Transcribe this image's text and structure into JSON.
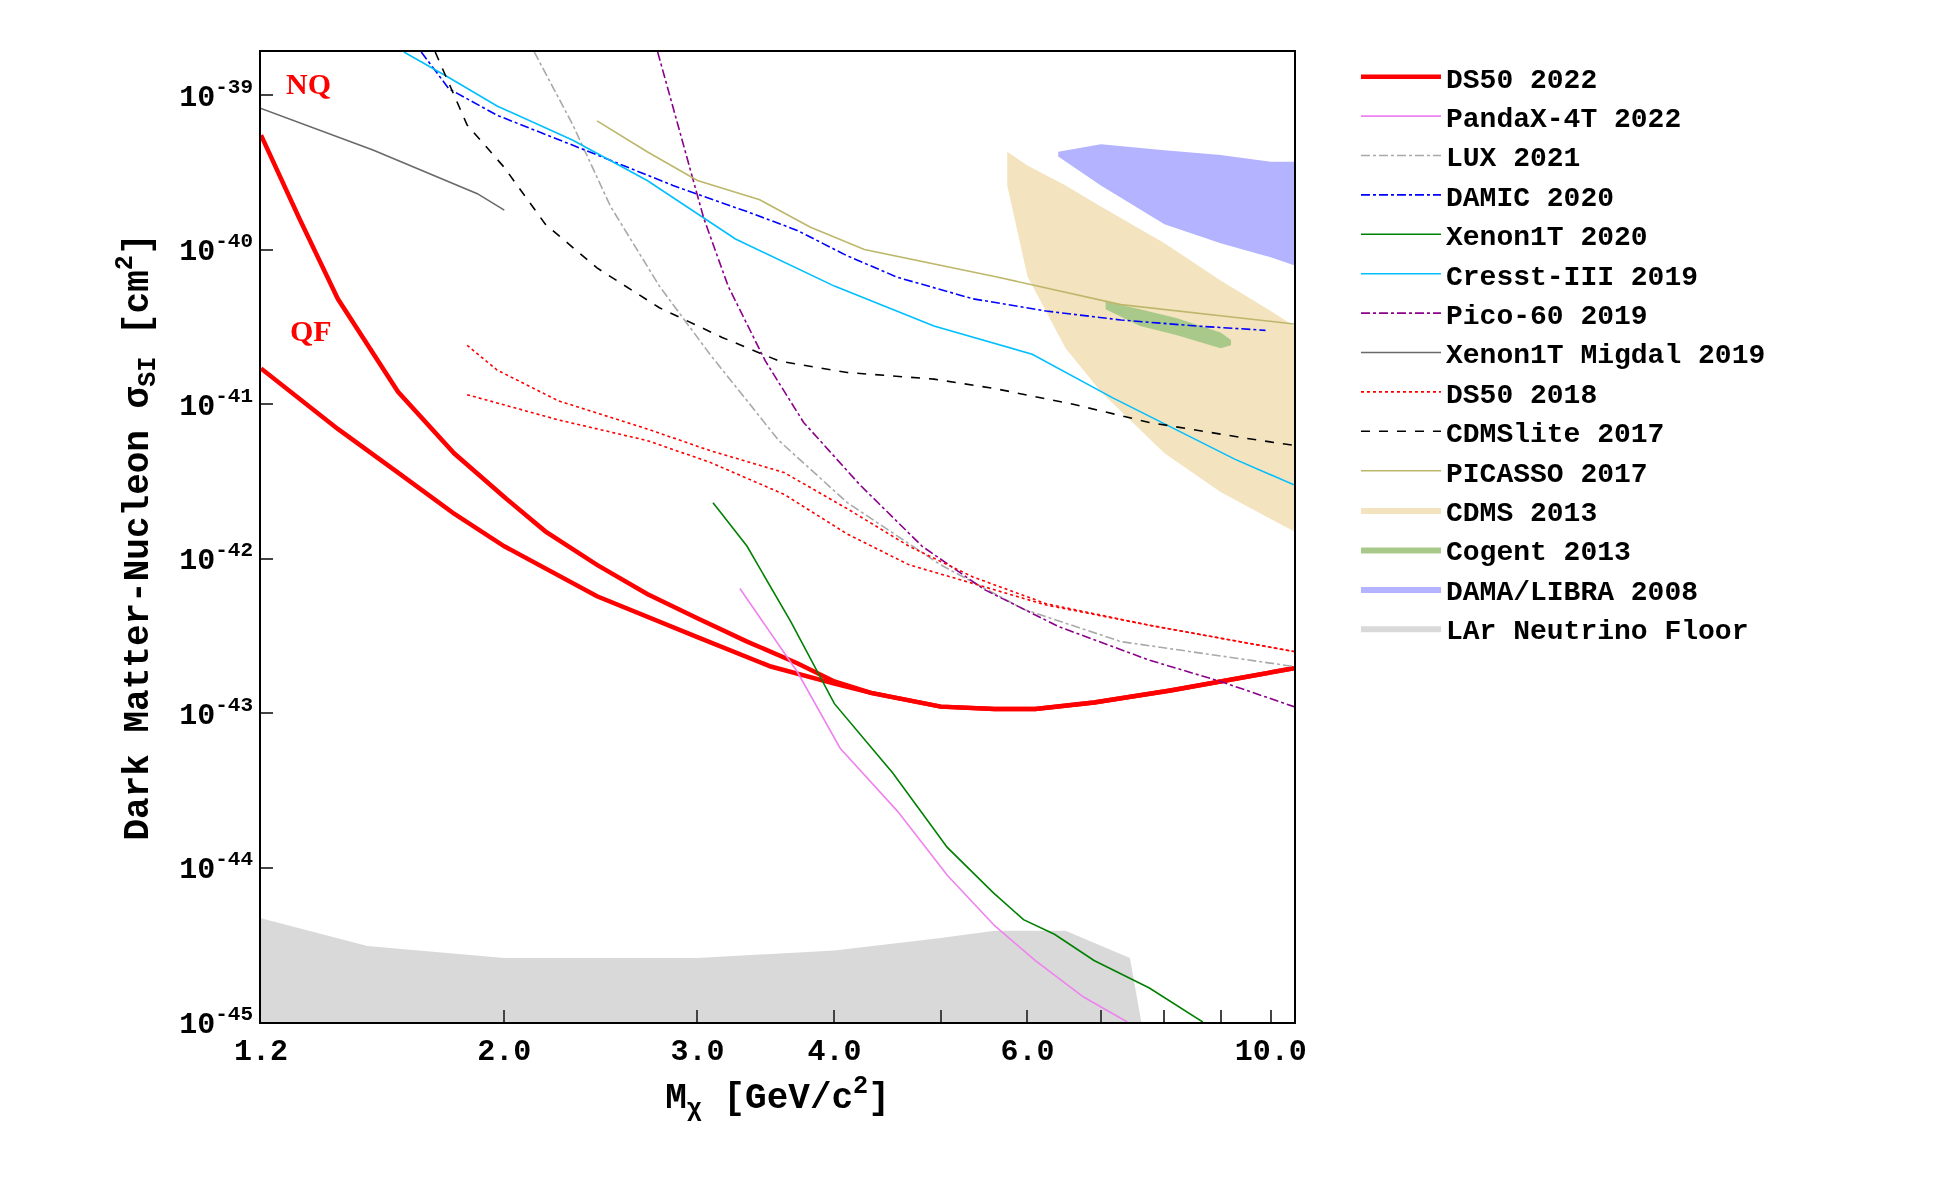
{
  "chart_data": {
    "type": "line",
    "xlabel": "M$_{χ}$ [GeV/c$^{2}$]",
    "ylabel": "Dark Matter-Nucleon σ$_{SI}$ [cm$^{2}$]",
    "log": "xy",
    "legend": "right",
    "xlim": [
      1.2,
      10.5
    ],
    "ylim": [
      1e-45,
      1.9e-39
    ],
    "xticks": [
      {
        "value": 1.2,
        "label": "1.2"
      },
      {
        "value": 2,
        "label": "2.0"
      },
      {
        "value": 3,
        "label": "3.0"
      },
      {
        "value": 4,
        "label": "4.0"
      },
      {
        "value": 5,
        "label": null
      },
      {
        "value": 6,
        "label": "6.0"
      },
      {
        "value": 7,
        "label": null
      },
      {
        "value": 8,
        "label": null
      },
      {
        "value": 9,
        "label": null
      },
      {
        "value": 10,
        "label": "10.0"
      }
    ],
    "yticks": [
      {
        "value": 1e-45,
        "label": "10$^{-45}$"
      },
      {
        "value": 1e-44,
        "label": "10$^{-44}$"
      },
      {
        "value": 1e-43,
        "label": "10$^{-43}$"
      },
      {
        "value": 1e-42,
        "label": "10$^{-42}$"
      },
      {
        "value": 1e-41,
        "label": "10$^{-41}$"
      },
      {
        "value": 1e-40,
        "label": "10$^{-40}$"
      },
      {
        "value": 1e-39,
        "label": "10$^{-39}$"
      }
    ],
    "annotations": [
      {
        "text": "NQ",
        "x": 1.25,
        "y": 3e-40
      },
      {
        "text": "QF",
        "x": 1.41,
        "y": 6.9e-42
      }
    ],
    "series": [
      {
        "name": "DS50 2022",
        "color": "#ff0000",
        "line_style": "solid",
        "x": [
          1.2,
          1.3,
          1.41,
          1.6,
          1.8,
          2.0,
          2.18,
          2.43,
          2.7,
          3.0,
          3.33,
          3.7,
          4.0,
          4.32,
          5.0,
          5.6,
          6.1,
          6.9,
          8.1,
          10.5
        ],
        "values": [
          5.5e-40,
          1.6e-40,
          4.8e-41,
          1.2e-41,
          4.8e-42,
          2.5e-42,
          1.5e-42,
          9.1e-43,
          5.9e-43,
          4.1e-43,
          2.9e-43,
          2.1e-43,
          1.6e-43,
          1.35e-43,
          1.1e-43,
          1.06e-43,
          1.06e-43,
          1.17e-43,
          1.4e-43,
          1.95e-43
        ]
      },
      {
        "color": "#ff0000",
        "line_style": "solid",
        "x": [
          1.2,
          1.41,
          1.6,
          1.8,
          2.0,
          2.43,
          3.0,
          3.5,
          4.0,
          4.32,
          5.0,
          5.6,
          6.1,
          6.9,
          8.1,
          10.5
        ],
        "values": [
          1.7e-41,
          6.9e-42,
          3.6e-42,
          1.95e-42,
          1.2e-42,
          5.7e-43,
          3.1e-43,
          2e-43,
          1.55e-43,
          1.35e-43,
          1.1e-43,
          1.06e-43,
          1.06e-43,
          1.17e-43,
          1.4e-43,
          1.95e-43
        ]
      },
      {
        "name": "PandaX-4T 2022",
        "color": "#ee82ee",
        "line_style": "solid",
        "x": [
          3.28,
          3.7,
          4.05,
          4.57,
          5.07,
          5.6,
          6.1,
          6.75,
          7.4
        ],
        "values": [
          6.4e-43,
          1.85e-43,
          5.9e-44,
          2.3e-44,
          8.9e-45,
          4.2e-45,
          2.5e-45,
          1.45e-45,
          1e-45
        ]
      },
      {
        "name": "LUX 2021",
        "color": "#a9a9a9",
        "line_style": "dashdot",
        "x": [
          2.13,
          2.31,
          2.5,
          2.77,
          3.08,
          3.56,
          4.11,
          5.0,
          5.95,
          7.3,
          10.5
        ],
        "values": [
          1.9e-39,
          6.4e-40,
          1.9e-40,
          5.8e-41,
          2.1e-41,
          5.8e-42,
          2.3e-42,
          9.1e-43,
          4.7e-43,
          2.9e-43,
          2e-43
        ]
      },
      {
        "name": "DAMIC 2020",
        "color": "#0000ff",
        "line_style": "dashdot",
        "x": [
          1.68,
          1.78,
          1.97,
          2.37,
          2.85,
          3.33,
          3.7,
          4.11,
          4.57,
          5.35,
          6.24,
          7.3,
          8.55,
          9.89
        ],
        "values": [
          1.9e-39,
          1.1e-39,
          7.4e-40,
          4.4e-40,
          2.6e-40,
          1.76e-40,
          1.33e-40,
          9.1e-41,
          6.6e-41,
          4.8e-41,
          4e-41,
          3.5e-41,
          3.2e-41,
          3e-41
        ]
      },
      {
        "name": "Xenon1T 2020",
        "color": "#008000",
        "line_style": "solid",
        "x": [
          3.1,
          3.33,
          3.65,
          4.0,
          4.52,
          5.07,
          5.58,
          5.95,
          6.35,
          6.9,
          7.75,
          8.67
        ],
        "values": [
          2.3e-42,
          1.2e-42,
          3.9e-43,
          1.15e-43,
          4.1e-44,
          1.35e-44,
          6.9e-45,
          4.6e-45,
          3.7e-45,
          2.5e-45,
          1.66e-45,
          1e-45
        ]
      },
      {
        "name": "Cresst-III 2019",
        "color": "#00bfff",
        "line_style": "solid",
        "x": [
          1.62,
          1.78,
          1.97,
          2.31,
          2.7,
          3.25,
          4.0,
          4.93,
          6.06,
          7.17,
          9.27,
          10.5
        ],
        "values": [
          1.9e-39,
          1.3e-39,
          8.5e-40,
          5.1e-40,
          2.8e-40,
          1.17e-40,
          5.8e-41,
          3.2e-41,
          2.1e-41,
          1.1e-41,
          4.4e-42,
          3e-42
        ]
      },
      {
        "name": "Pico-60 2019",
        "color": "#8b008b",
        "line_style": "dashdot",
        "x": [
          2.76,
          2.88,
          3.04,
          3.2,
          3.46,
          3.75,
          4.22,
          4.81,
          5.48,
          6.42,
          7.75,
          9.0,
          10.5
        ],
        "values": [
          1.9e-39,
          6.4e-40,
          1.6e-40,
          5.8e-41,
          1.9e-41,
          7.6e-42,
          3e-42,
          1.2e-42,
          6.3e-43,
          3.6e-43,
          2.2e-43,
          1.6e-43,
          1.1e-43
        ]
      },
      {
        "name": "Xenon1T Migdal 2019",
        "color": "#696969",
        "line_style": "solid",
        "x": [
          1.2,
          1.52,
          1.89,
          2.0
        ],
        "values": [
          8.2e-40,
          4.4e-40,
          2.3e-40,
          1.8e-40
        ]
      },
      {
        "name": "DS50 2018",
        "color": "#ff0000",
        "line_style": "dotted",
        "x": [
          1.85,
          1.97,
          2.24,
          2.7,
          3.08,
          3.6,
          4.11,
          4.68,
          5.35,
          6.24,
          7.75,
          10.5
        ],
        "values": [
          2.4e-41,
          1.66e-41,
          1.05e-41,
          6.9e-42,
          5e-42,
          3.6e-42,
          2.1e-42,
          1.2e-42,
          7.6e-43,
          5.1e-43,
          3.7e-43,
          2.5e-43
        ]
      },
      {
        "color": "#ff0000",
        "line_style": "dotted",
        "x": [
          1.85,
          2.24,
          2.7,
          3.08,
          3.6,
          4.11,
          4.68,
          5.35,
          6.24,
          7.75,
          10.5
        ],
        "values": [
          1.15e-41,
          7.9e-42,
          5.8e-42,
          4.2e-42,
          2.6e-42,
          1.44e-42,
          9.1e-43,
          6.9e-43,
          5e-43,
          3.7e-43,
          2.5e-43
        ]
      },
      {
        "name": "CDMSlite 2017",
        "color": "#000000",
        "line_style": "dashed",
        "x": [
          1.73,
          1.85,
          2.0,
          2.18,
          2.43,
          2.77,
          3.16,
          3.56,
          4.11,
          4.93,
          5.6,
          6.59,
          7.75,
          9.5,
          10.5
        ],
        "values": [
          1.9e-39,
          6.4e-40,
          3.4e-40,
          1.46e-40,
          7.6e-41,
          4.2e-41,
          2.7e-41,
          1.9e-41,
          1.6e-41,
          1.45e-41,
          1.26e-41,
          1e-41,
          7.6e-42,
          6e-42,
          5.4e-42
        ]
      },
      {
        "name": "PICASSO 2017",
        "color": "#bdb76b",
        "line_style": "solid",
        "x": [
          2.43,
          2.7,
          3.0,
          3.42,
          3.8,
          4.26,
          5.6,
          7.3,
          10.5
        ],
        "values": [
          6.8e-40,
          4.3e-40,
          2.8e-40,
          2.1e-40,
          1.4e-40,
          1e-40,
          6.7e-41,
          4.4e-41,
          3.3e-41
        ]
      },
      {
        "name": "CDMS 2013",
        "type": "area",
        "color": "#f3e3be",
        "x": [
          5.75,
          6.0,
          6.5,
          7.0,
          8.0,
          9.0,
          10.0,
          10.5
        ],
        "values": [
          null,
          null,
          null,
          null,
          null,
          null,
          null,
          null
        ],
        "upper": [
          4.3e-40,
          3.5e-40,
          2.6e-40,
          1.9e-40,
          1.1e-40,
          6.3e-41,
          4e-41,
          3.2e-41
        ],
        "lower": [
          2.6e-40,
          6.7e-41,
          2.3e-41,
          1.2e-41,
          4.8e-42,
          2.7e-42,
          1.8e-42,
          1.5e-42
        ]
      },
      {
        "name": "Cogent 2013",
        "type": "area",
        "color": "#a9c98b",
        "x": [
          7.07,
          7.6,
          8.2,
          9.0,
          9.2
        ],
        "values": [
          null,
          null,
          null,
          null,
          null
        ],
        "upper": [
          4.6e-41,
          4.1e-41,
          3.6e-41,
          2.9e-41,
          2.6e-41
        ],
        "lower": [
          4.1e-41,
          3.2e-41,
          2.8e-41,
          2.3e-41,
          2.4e-41
        ]
      },
      {
        "name": "DAMA/LIBRA 2008",
        "type": "area",
        "color": "#b3b3ff",
        "x": [
          6.4,
          7.0,
          8.0,
          9.0,
          10.0,
          10.5
        ],
        "values": [
          null,
          null,
          null,
          null,
          null,
          null
        ],
        "upper": [
          4.3e-40,
          4.8e-40,
          4.4e-40,
          4.1e-40,
          3.7e-40,
          3.7e-40
        ],
        "lower": [
          4e-40,
          2.6e-40,
          1.46e-40,
          1.1e-40,
          8.9e-41,
          7.9e-41
        ]
      },
      {
        "name": "LAr Neutrino Floor",
        "type": "area",
        "color": "#d9d9d9",
        "x": [
          1.2,
          1.5,
          2.0,
          3.0,
          4.0,
          5.0,
          5.6,
          6.5,
          7.44,
          7.62
        ],
        "values": [
          null,
          null,
          null,
          null,
          null,
          null,
          null,
          null,
          null,
          null
        ],
        "upper": [
          4.7e-45,
          3.1e-45,
          2.6e-45,
          2.6e-45,
          2.9e-45,
          3.5e-45,
          3.9e-45,
          3.9e-45,
          2.6e-45,
          1e-45
        ],
        "lower": [
          1e-45,
          1e-45,
          1e-45,
          1e-45,
          1e-45,
          1e-45,
          1e-45,
          1e-45,
          1e-45,
          1e-45
        ]
      }
    ]
  }
}
